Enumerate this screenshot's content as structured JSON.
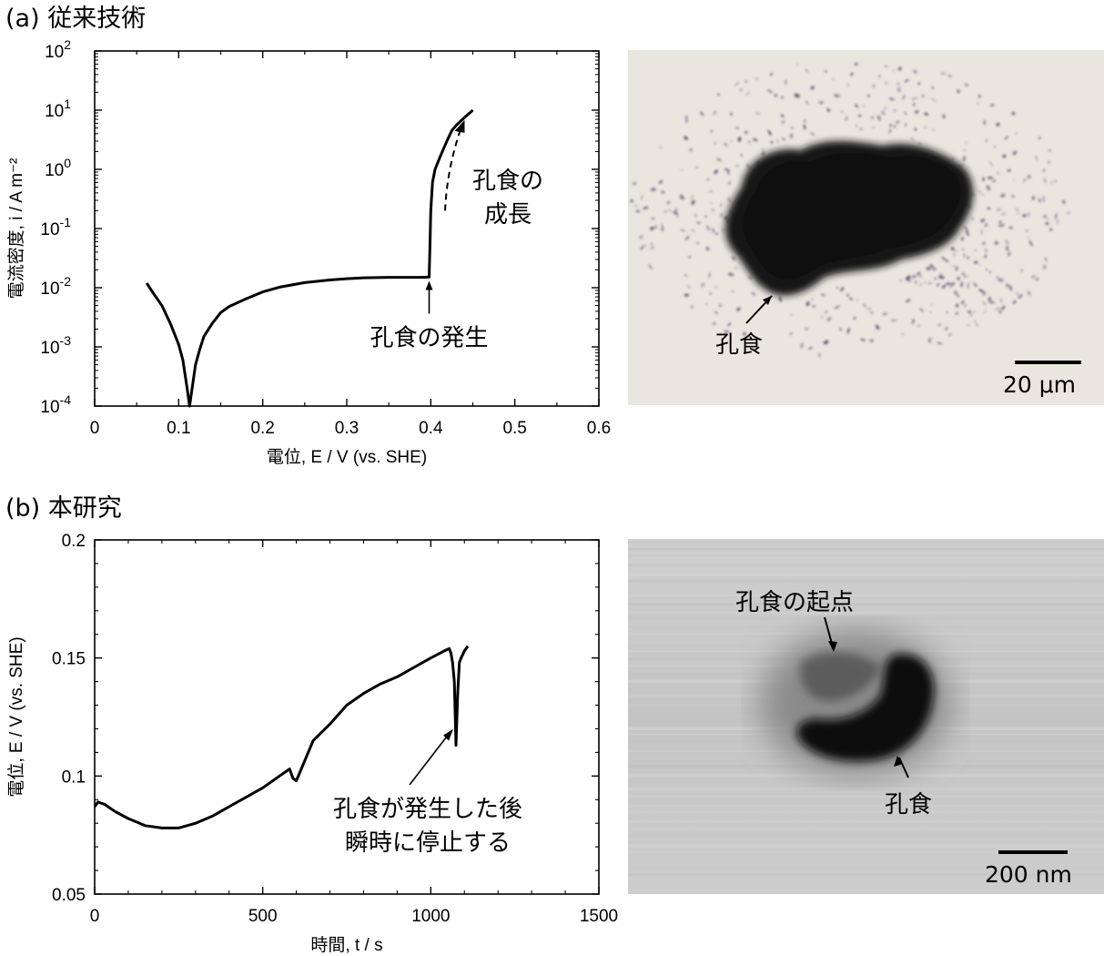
{
  "panels": {
    "a": {
      "title": "(a) 従来技術"
    },
    "b": {
      "title": "(b) 本研究"
    }
  },
  "chart_data": [
    {
      "type": "line",
      "panel": "a",
      "xlabel": "電位, E / V (vs. SHE)",
      "ylabel": "電流密度, i / A m⁻²",
      "xlim": [
        0,
        0.6
      ],
      "ylim": [
        0.0001,
        100
      ],
      "yscale": "log",
      "xticks": [
        "0",
        "0.1",
        "0.2",
        "0.3",
        "0.4",
        "0.5",
        "0.6"
      ],
      "yticks_base": "10",
      "yticks_exp": [
        "-4",
        "-3",
        "-2",
        "-1",
        "0",
        "1",
        "2"
      ],
      "series": [
        {
          "x": [
            0.062,
            0.07,
            0.08,
            0.09,
            0.1,
            0.105,
            0.11,
            0.113,
            0.116,
            0.12,
            0.125,
            0.13,
            0.14,
            0.15,
            0.16,
            0.18,
            0.2,
            0.22,
            0.25,
            0.28,
            0.3,
            0.32,
            0.35,
            0.37,
            0.38,
            0.39,
            0.398,
            0.399,
            0.4,
            0.402,
            0.405,
            0.41,
            0.415,
            0.42,
            0.425,
            0.43,
            0.44,
            0.45
          ],
          "y": [
            0.012,
            0.008,
            0.005,
            0.0025,
            0.0011,
            0.0006,
            0.0002,
            0.0001,
            0.0002,
            0.0005,
            0.0009,
            0.0015,
            0.0025,
            0.0038,
            0.0048,
            0.0065,
            0.0085,
            0.0102,
            0.0122,
            0.0135,
            0.0142,
            0.0147,
            0.015,
            0.015,
            0.015,
            0.015,
            0.0152,
            0.05,
            0.2,
            0.6,
            1.0,
            1.5,
            2.2,
            3.2,
            4.5,
            5.5,
            7.5,
            10
          ]
        }
      ],
      "annotations": [
        {
          "text": "孔食の発生"
        },
        {
          "text": "孔食の成長",
          "lines": [
            "孔食の",
            "成長"
          ]
        }
      ]
    },
    {
      "type": "line",
      "panel": "b",
      "xlabel": "時間, t / s",
      "ylabel": "電位, E / V (vs. SHE)",
      "xlim": [
        0,
        1500
      ],
      "ylim": [
        0.05,
        0.2
      ],
      "xticks": [
        "0",
        "500",
        "1000",
        "1500"
      ],
      "yticks": [
        "0.05",
        "0.1",
        "0.15",
        "0.2"
      ],
      "series": [
        {
          "x": [
            0,
            10,
            30,
            60,
            100,
            150,
            200,
            250,
            300,
            350,
            400,
            450,
            500,
            550,
            580,
            590,
            600,
            650,
            700,
            750,
            800,
            850,
            900,
            950,
            1000,
            1040,
            1055,
            1060,
            1065,
            1070,
            1075,
            1080,
            1085,
            1090,
            1100,
            1110
          ],
          "y": [
            0.087,
            0.089,
            0.088,
            0.085,
            0.082,
            0.079,
            0.078,
            0.078,
            0.08,
            0.083,
            0.087,
            0.091,
            0.095,
            0.1,
            0.103,
            0.099,
            0.098,
            0.115,
            0.122,
            0.13,
            0.135,
            0.139,
            0.142,
            0.146,
            0.15,
            0.153,
            0.154,
            0.152,
            0.148,
            0.14,
            0.113,
            0.135,
            0.148,
            0.15,
            0.153,
            0.155
          ]
        }
      ],
      "annotations": [
        {
          "text": "孔食が発生した後瞬時に停止する",
          "lines": [
            "孔食が発生した後",
            "瞬時に停止する"
          ]
        }
      ]
    }
  ],
  "images": {
    "optical": {
      "label": "孔食",
      "scalebar": "20 μm",
      "colors": {
        "background": "#e9e6df",
        "pit": "#141414",
        "spots": "#5a4a6e"
      }
    },
    "sem": {
      "labels": [
        "孔食の起点",
        "孔食"
      ],
      "scalebar": "200 nm",
      "colors": {
        "background": "#c9c9c9",
        "pit": "#0a0a0a",
        "halo": "#8a8a8a"
      }
    }
  }
}
